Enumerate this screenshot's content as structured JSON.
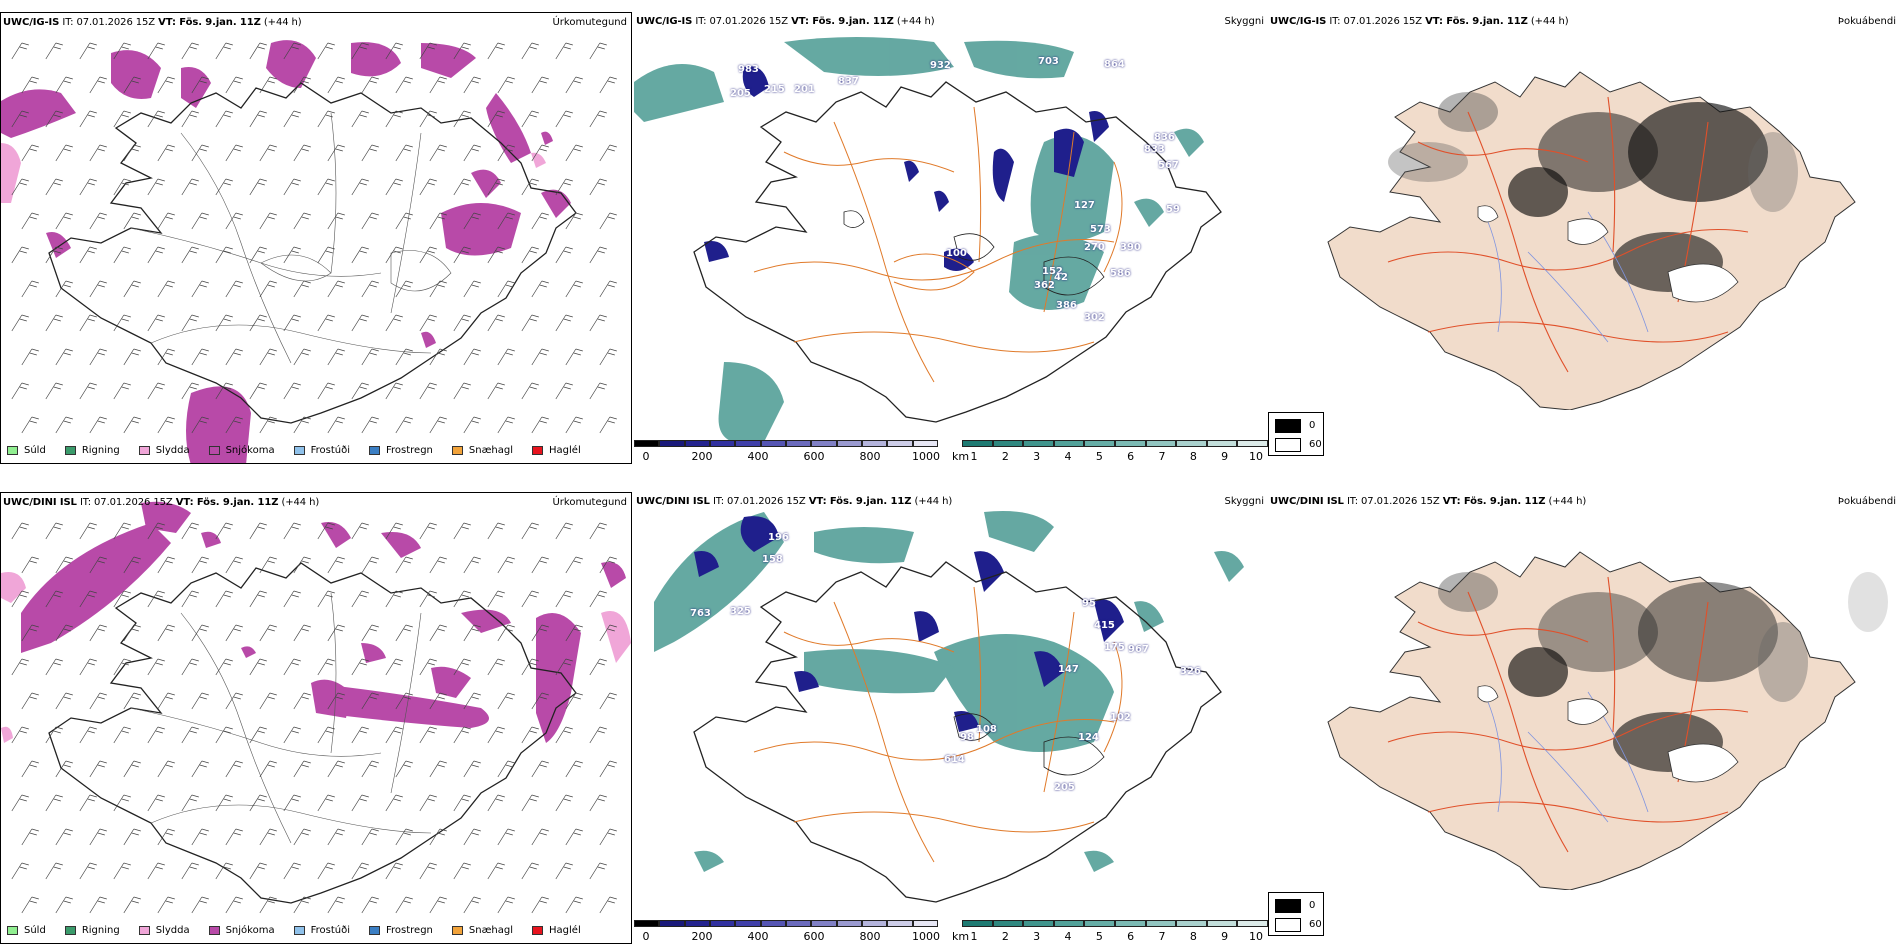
{
  "rows": [
    {
      "model": "UWC/IG-IS",
      "precip": {
        "title_model": "UWC/IG-IS",
        "title_it": "IT: 07.01.2026 15Z",
        "title_vt": "VT: Fös. 9.jan. 11Z",
        "title_lead": "(+44 h)",
        "name": "Úrkomutegund"
      },
      "vis": {
        "title_model": "UWC/IG-IS",
        "title_it": "IT: 07.01.2026 15Z",
        "title_vt": "VT: Fös. 9.jan. 11Z",
        "title_lead": "(+44 h)",
        "name": "Skyggni",
        "labels": [
          "983",
          "205",
          "215",
          "201",
          "837",
          "932",
          "703",
          "864",
          "836",
          "833",
          "567",
          "127",
          "573",
          "270",
          "390",
          "586",
          "100",
          "152",
          "386",
          "362",
          "302",
          "42",
          "59"
        ]
      },
      "fog": {
        "title_model": "UWC/IG-IS",
        "title_it": "IT: 07.01.2026 15Z",
        "title_vt": "VT: Fös. 9.jan. 11Z",
        "title_lead": "(+44 h)",
        "name": "Þokuábendi"
      }
    },
    {
      "model": "UWC/DINI ISL",
      "precip": {
        "title_model": "UWC/DINI ISL",
        "title_it": "IT: 07.01.2026 15Z",
        "title_vt": "VT: Fös. 9.jan. 11Z",
        "title_lead": "(+44 h)",
        "name": "Úrkomutegund"
      },
      "vis": {
        "title_model": "UWC/DINI ISL",
        "title_it": "IT: 07.01.2026 15Z",
        "title_vt": "VT: Fös. 9.jan. 11Z",
        "title_lead": "(+44 h)",
        "name": "Skyggni",
        "labels": [
          "196",
          "158",
          "763",
          "325",
          "95",
          "415",
          "175",
          "967",
          "326",
          "102",
          "98",
          "108",
          "614",
          "205",
          "124",
          "147"
        ]
      },
      "fog": {
        "title_model": "UWC/DINI ISL",
        "title_it": "IT: 07.01.2026 15Z",
        "title_vt": "VT: Fös. 9.jan. 11Z",
        "title_lead": "(+44 h)",
        "name": "Þokuábendi"
      }
    }
  ],
  "precip_legend": [
    {
      "label": "Súld",
      "color": "#90ee90"
    },
    {
      "label": "Rigning",
      "color": "#3a9b6b"
    },
    {
      "label": "Slydda",
      "color": "#f0a6d8"
    },
    {
      "label": "Snjókoma",
      "color": "#b84aa8"
    },
    {
      "label": "Frostúði",
      "color": "#8fc1ea"
    },
    {
      "label": "Frostregn",
      "color": "#3b7fc4"
    },
    {
      "label": "Snæhagl",
      "color": "#f2a33a"
    },
    {
      "label": "Haglél",
      "color": "#e8141e"
    }
  ],
  "ceiling_bar": {
    "unit": "m",
    "ticks": [
      "0",
      "200",
      "400",
      "600",
      "800",
      "1000"
    ],
    "colors": [
      "#000000",
      "#1a1a7a",
      "#24248f",
      "#3131a0",
      "#4040aa",
      "#5555b3",
      "#6b6bbd",
      "#8181c6",
      "#9a9ad0",
      "#b4b4dc",
      "#cdcde8",
      "#e6e6f4"
    ]
  },
  "vis_bar": {
    "unit": "km",
    "ticks": [
      "1",
      "2",
      "3",
      "4",
      "5",
      "6",
      "7",
      "8",
      "9",
      "10"
    ],
    "colors": [
      "#1e7b73",
      "#2f8880",
      "#40958d",
      "#52a29a",
      "#66aea7",
      "#7bbab4",
      "#92c6c1",
      "#aad2ce",
      "#c3dfdb",
      "#dcebe9"
    ]
  },
  "fog_key": {
    "labels": [
      "0",
      "60"
    ],
    "colors": [
      "#000000",
      "#ffffff"
    ]
  },
  "colors": {
    "snow": "#b84aa8",
    "sleet": "#f0a6d8",
    "vis_teal": "#3f938b",
    "ceiling_blue": "#1f1f8c",
    "roads": "#e07a2a",
    "land": "#f1dccb",
    "rivers": "#7f94e0",
    "fog_roads": "#e0502a"
  }
}
